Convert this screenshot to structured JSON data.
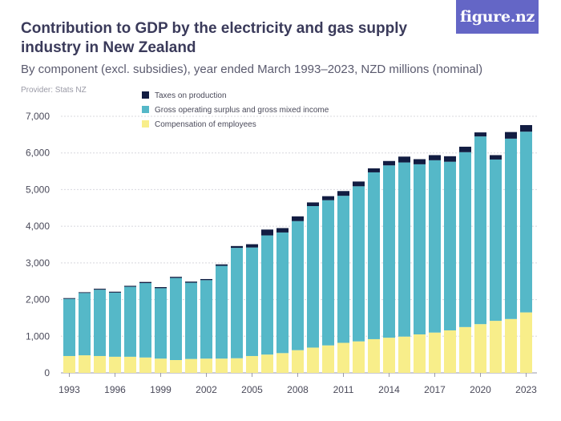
{
  "title": "Contribution to GDP by the electricity and gas supply industry in New Zealand",
  "subtitle": "By component (excl. subsidies), year ended March 1993–2023, NZD millions (nominal)",
  "provider": "Provider: Stats NZ",
  "logo_text": "figure.nz",
  "chart_data": {
    "type": "bar",
    "stacked": true,
    "categories": [
      "1993",
      "1994",
      "1995",
      "1996",
      "1997",
      "1998",
      "1999",
      "2000",
      "2001",
      "2002",
      "2003",
      "2004",
      "2005",
      "2006",
      "2007",
      "2008",
      "2009",
      "2010",
      "2011",
      "2012",
      "2013",
      "2014",
      "2015",
      "2016",
      "2017",
      "2018",
      "2019",
      "2020",
      "2021",
      "2022",
      "2023"
    ],
    "series": [
      {
        "name": "Compensation of employees",
        "color": "#f8ee8a",
        "values": [
          460,
          480,
          460,
          440,
          440,
          420,
          390,
          350,
          380,
          390,
          390,
          400,
          460,
          500,
          540,
          620,
          690,
          750,
          820,
          860,
          920,
          960,
          990,
          1050,
          1100,
          1160,
          1250,
          1330,
          1420,
          1470,
          1650
        ]
      },
      {
        "name": "Gross operating surplus and gross mixed income",
        "color": "#55b8c8",
        "values": [
          1560,
          1700,
          1810,
          1750,
          1910,
          2030,
          1920,
          2240,
          2080,
          2140,
          2530,
          3010,
          2960,
          3250,
          3290,
          3520,
          3860,
          3960,
          4010,
          4230,
          4550,
          4700,
          4750,
          4640,
          4700,
          4600,
          4770,
          5120,
          4400,
          4920,
          4930
        ]
      },
      {
        "name": "Taxes on production",
        "color": "#121d42",
        "values": [
          20,
          20,
          25,
          25,
          25,
          30,
          30,
          30,
          30,
          30,
          40,
          50,
          90,
          160,
          120,
          130,
          100,
          110,
          130,
          130,
          110,
          120,
          160,
          140,
          140,
          150,
          150,
          110,
          120,
          180,
          180
        ]
      }
    ],
    "ylim": [
      0,
      7000
    ],
    "yticks": [
      0,
      1000,
      2000,
      3000,
      4000,
      5000,
      6000,
      7000
    ],
    "ytick_labels": [
      "0",
      "1,000",
      "2,000",
      "3,000",
      "4,000",
      "5,000",
      "6,000",
      "7,000"
    ],
    "xtick_labels": [
      "1993",
      "1996",
      "1999",
      "2002",
      "2005",
      "2008",
      "2011",
      "2014",
      "2017",
      "2020",
      "2023"
    ],
    "legend": [
      {
        "label": "Taxes on production",
        "color": "#121d42"
      },
      {
        "label": "Gross operating surplus and gross mixed income",
        "color": "#55b8c8"
      },
      {
        "label": "Compensation of employees",
        "color": "#f8ee8a"
      }
    ],
    "legend_position": "top-left",
    "grid": true,
    "xlabel": "",
    "ylabel": ""
  }
}
